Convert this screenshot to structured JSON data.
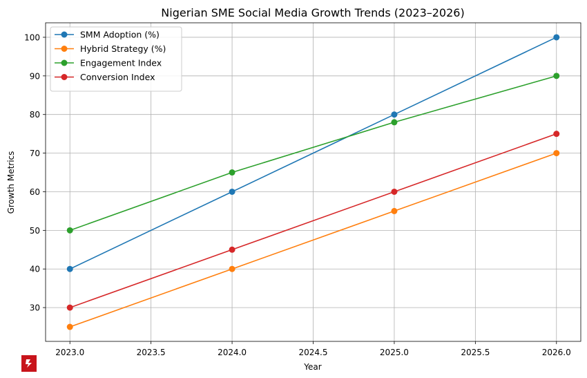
{
  "chart_data": {
    "type": "line",
    "title": "Nigerian SME Social Media Growth Trends (2023–2026)",
    "xlabel": "Year",
    "ylabel": "Growth Metrics",
    "x": [
      2023,
      2024,
      2025,
      2026
    ],
    "xlim": [
      2022.85,
      2026.15
    ],
    "ylim": [
      21.25,
      103.75
    ],
    "xticks": [
      2023.0,
      2023.5,
      2024.0,
      2024.5,
      2025.0,
      2025.5,
      2026.0
    ],
    "xtick_labels": [
      "2023.0",
      "2023.5",
      "2024.0",
      "2024.5",
      "2025.0",
      "2025.5",
      "2026.0"
    ],
    "yticks": [
      30,
      40,
      50,
      60,
      70,
      80,
      90,
      100
    ],
    "ytick_labels": [
      "30",
      "40",
      "50",
      "60",
      "70",
      "80",
      "90",
      "100"
    ],
    "grid": true,
    "legend_position": "top-left",
    "series": [
      {
        "name": "SMM Adoption (%)",
        "color": "#1f77b4",
        "values": [
          40,
          60,
          80,
          100
        ]
      },
      {
        "name": "Hybrid Strategy (%)",
        "color": "#ff7f0e",
        "values": [
          25,
          40,
          55,
          70
        ]
      },
      {
        "name": "Engagement Index",
        "color": "#2ca02c",
        "values": [
          50,
          65,
          78,
          90
        ]
      },
      {
        "name": "Conversion Index",
        "color": "#d62728",
        "values": [
          30,
          45,
          60,
          75
        ]
      }
    ]
  },
  "logo": {
    "icon": "brand-logo-icon",
    "color": "#c8141b"
  }
}
